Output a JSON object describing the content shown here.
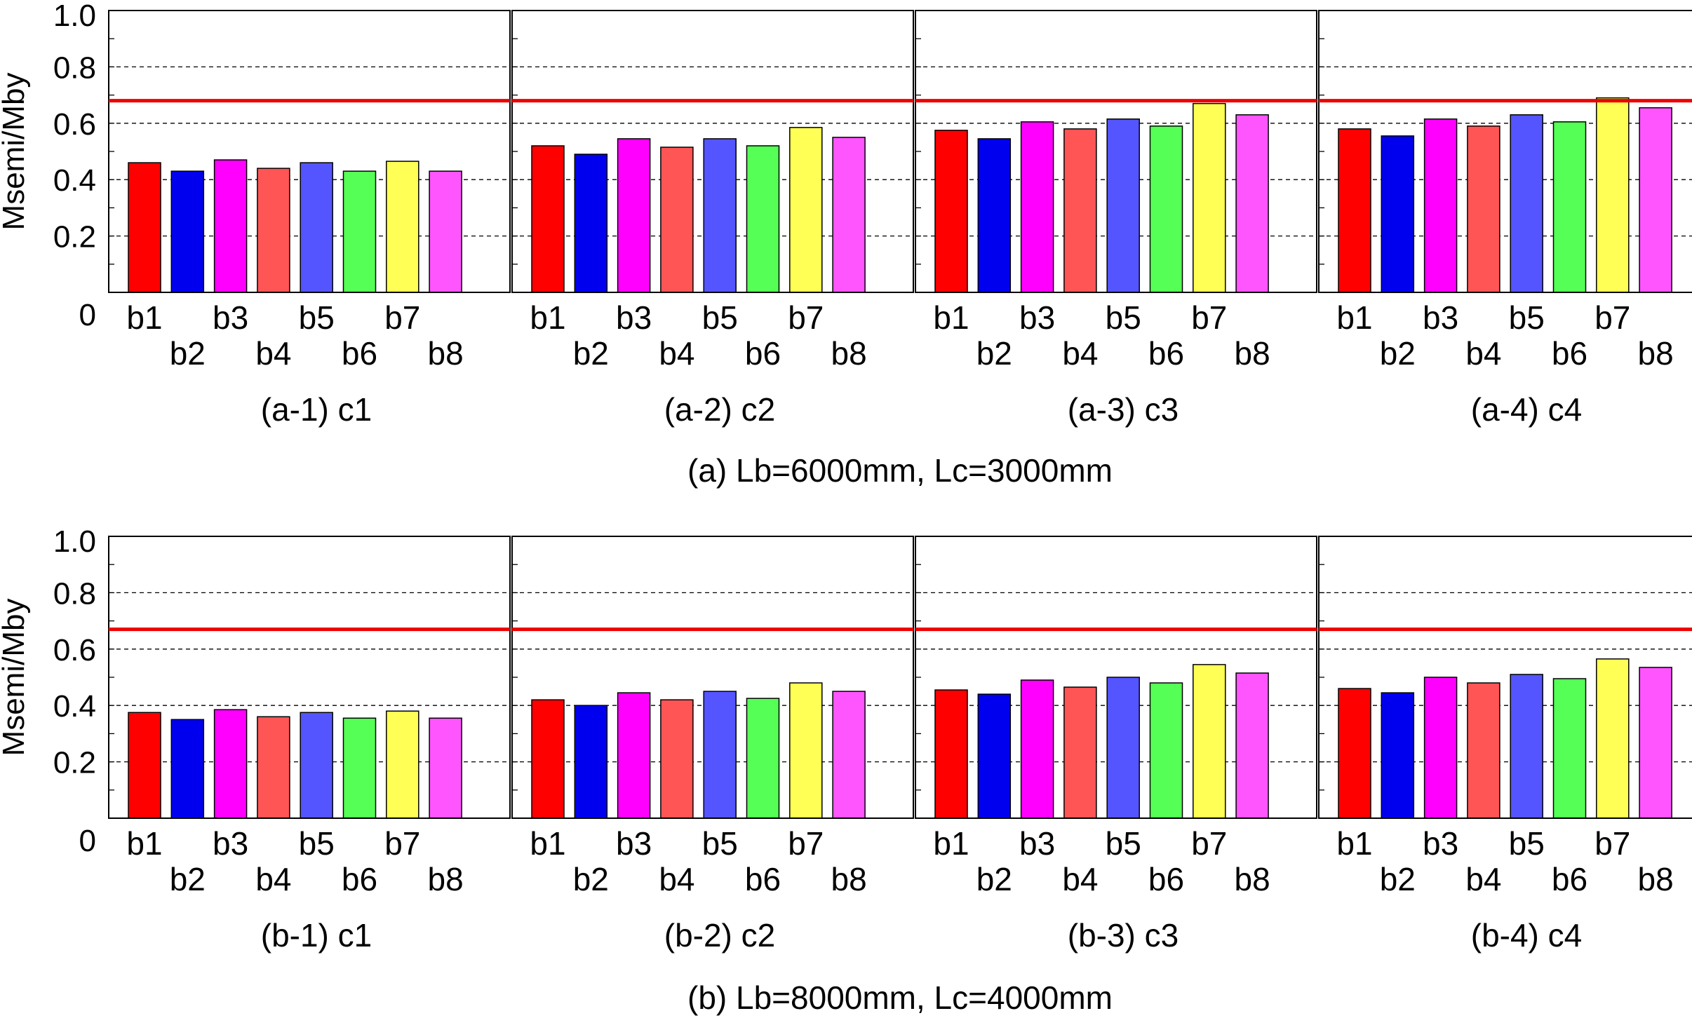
{
  "figure": {
    "group_captions": [
      "(a) Lb=6000mm, Lc=3000mm",
      "(b) Lb=8000mm, Lc=4000mm"
    ]
  },
  "chart_data": [
    {
      "type": "bar",
      "group": "a",
      "title": "(a-1) c1",
      "ylabel": "Msemi/Mby",
      "ylim": [
        0,
        1.0
      ],
      "yticks": [
        "0",
        "0.2",
        "0.4",
        "0.6",
        "0.8",
        "1.0"
      ],
      "grid": "horizontal-dashed",
      "categories": [
        "b1",
        "b2",
        "b3",
        "b4",
        "b5",
        "b6",
        "b7",
        "b8"
      ],
      "values": [
        0.46,
        0.43,
        0.47,
        0.44,
        0.46,
        0.43,
        0.465,
        0.43
      ],
      "reference_line": 0.68
    },
    {
      "type": "bar",
      "group": "a",
      "title": "(a-2) c2",
      "ylabel": "",
      "ylim": [
        0,
        1.0
      ],
      "yticks": [],
      "grid": "horizontal-dashed",
      "categories": [
        "b1",
        "b2",
        "b3",
        "b4",
        "b5",
        "b6",
        "b7",
        "b8"
      ],
      "values": [
        0.52,
        0.49,
        0.545,
        0.515,
        0.545,
        0.52,
        0.585,
        0.55
      ],
      "reference_line": 0.68
    },
    {
      "type": "bar",
      "group": "a",
      "title": "(a-3) c3",
      "ylabel": "",
      "ylim": [
        0,
        1.0
      ],
      "yticks": [],
      "grid": "horizontal-dashed",
      "categories": [
        "b1",
        "b2",
        "b3",
        "b4",
        "b5",
        "b6",
        "b7",
        "b8"
      ],
      "values": [
        0.575,
        0.545,
        0.605,
        0.58,
        0.615,
        0.59,
        0.67,
        0.63
      ],
      "reference_line": 0.68
    },
    {
      "type": "bar",
      "group": "a",
      "title": "(a-4) c4",
      "ylabel": "",
      "ylim": [
        0,
        1.0
      ],
      "yticks": [],
      "grid": "horizontal-dashed",
      "categories": [
        "b1",
        "b2",
        "b3",
        "b4",
        "b5",
        "b6",
        "b7",
        "b8"
      ],
      "values": [
        0.58,
        0.555,
        0.615,
        0.59,
        0.63,
        0.605,
        0.69,
        0.655
      ],
      "reference_line": 0.68
    },
    {
      "type": "bar",
      "group": "b",
      "title": "(b-1) c1",
      "ylabel": "Msemi/Mby",
      "ylim": [
        0,
        1.0
      ],
      "yticks": [
        "0",
        "0.2",
        "0.4",
        "0.6",
        "0.8",
        "1.0"
      ],
      "grid": "horizontal-dashed",
      "categories": [
        "b1",
        "b2",
        "b3",
        "b4",
        "b5",
        "b6",
        "b7",
        "b8"
      ],
      "values": [
        0.375,
        0.35,
        0.385,
        0.36,
        0.375,
        0.355,
        0.38,
        0.355
      ],
      "reference_line": 0.67
    },
    {
      "type": "bar",
      "group": "b",
      "title": "(b-2) c2",
      "ylabel": "",
      "ylim": [
        0,
        1.0
      ],
      "yticks": [],
      "grid": "horizontal-dashed",
      "categories": [
        "b1",
        "b2",
        "b3",
        "b4",
        "b5",
        "b6",
        "b7",
        "b8"
      ],
      "values": [
        0.42,
        0.4,
        0.445,
        0.42,
        0.45,
        0.425,
        0.48,
        0.45
      ],
      "reference_line": 0.67
    },
    {
      "type": "bar",
      "group": "b",
      "title": "(b-3) c3",
      "ylabel": "",
      "ylim": [
        0,
        1.0
      ],
      "yticks": [],
      "grid": "horizontal-dashed",
      "categories": [
        "b1",
        "b2",
        "b3",
        "b4",
        "b5",
        "b6",
        "b7",
        "b8"
      ],
      "values": [
        0.455,
        0.44,
        0.49,
        0.465,
        0.5,
        0.48,
        0.545,
        0.515
      ],
      "reference_line": 0.67
    },
    {
      "type": "bar",
      "group": "b",
      "title": "(b-4) c4",
      "ylabel": "",
      "ylim": [
        0,
        1.0
      ],
      "yticks": [],
      "grid": "horizontal-dashed",
      "categories": [
        "b1",
        "b2",
        "b3",
        "b4",
        "b5",
        "b6",
        "b7",
        "b8"
      ],
      "values": [
        0.46,
        0.445,
        0.5,
        0.48,
        0.51,
        0.495,
        0.565,
        0.535
      ],
      "reference_line": 0.67
    }
  ],
  "colors": {
    "bars": [
      "#ff0000",
      "#0000ee",
      "#ff00ff",
      "#ff5555",
      "#5555ff",
      "#55ff55",
      "#ffff55",
      "#ff55ff"
    ],
    "reference_line": "#ee0000",
    "grid": "#000000"
  }
}
